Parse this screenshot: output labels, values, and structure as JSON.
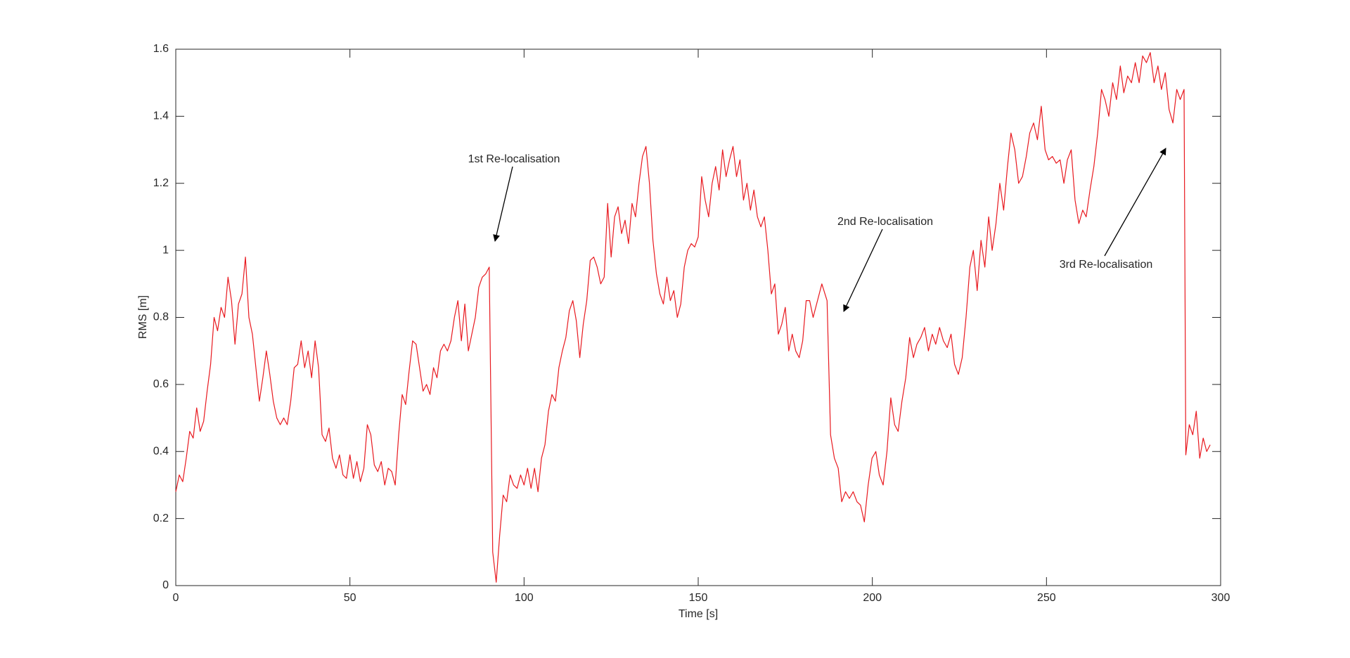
{
  "chart_data": {
    "type": "line",
    "xlabel": "Time [s]",
    "ylabel": "RMS [m]",
    "xlim": [
      0,
      300
    ],
    "xticks": [
      0,
      50,
      100,
      150,
      200,
      250,
      300
    ],
    "ylim": [
      0,
      1.6
    ],
    "yticks": [
      0,
      0.2,
      0.4,
      0.6,
      0.8,
      1,
      1.2,
      1.4,
      1.6
    ],
    "annotations": [
      "1st Re-localisation",
      "2nd Re-localisation",
      "3rd Re-localisation"
    ],
    "x": [
      0,
      1,
      2,
      3,
      4,
      5,
      6,
      7,
      8,
      9,
      10,
      11,
      12,
      13,
      14,
      15,
      16,
      17,
      18,
      19,
      20,
      21,
      22,
      23,
      24,
      25,
      26,
      27,
      28,
      29,
      30,
      31,
      32,
      33,
      34,
      35,
      36,
      37,
      38,
      39,
      40,
      41,
      42,
      43,
      44,
      45,
      46,
      47,
      48,
      49,
      50,
      51,
      52,
      53,
      54,
      55,
      56,
      57,
      58,
      59,
      60,
      61,
      62,
      63,
      64,
      65,
      66,
      67,
      68,
      69,
      70,
      71,
      72,
      73,
      74,
      75,
      76,
      77,
      78,
      79,
      80,
      81,
      82,
      83,
      84,
      85,
      86,
      87,
      88,
      89,
      90,
      91,
      92,
      93,
      94,
      95,
      96,
      97,
      98,
      99,
      100,
      101,
      102,
      103,
      104,
      105,
      106,
      107,
      108,
      109,
      110,
      111,
      112,
      113,
      114,
      115,
      116,
      117,
      118,
      119,
      120,
      121,
      122,
      123,
      124,
      125,
      126,
      127,
      128,
      129,
      130,
      131,
      132,
      133,
      134,
      135,
      136,
      137,
      138,
      139,
      140,
      141,
      142,
      143,
      144,
      145,
      146,
      147,
      148,
      149,
      150,
      151,
      152,
      153,
      154,
      155,
      156,
      157,
      158,
      159,
      160,
      161,
      162,
      163,
      164,
      165,
      166,
      167,
      168,
      169,
      170,
      171,
      172,
      173,
      174,
      175,
      176,
      177,
      178,
      179,
      180,
      181,
      182,
      183,
      185.5,
      187,
      188,
      189.1,
      190.2,
      191.2,
      192.3,
      193.4,
      194.5,
      195.6,
      196.6,
      197.7,
      198.8,
      199.9,
      201,
      202,
      203.1,
      204.2,
      205.3,
      206.4,
      207.4,
      208.5,
      209.6,
      210.7,
      211.8,
      212.8,
      213.9,
      215,
      216.1,
      217.2,
      218.2,
      219.3,
      220.4,
      221.5,
      222.6,
      223.6,
      224.7,
      225.8,
      226.9,
      228,
      229,
      230.1,
      231.2,
      232.3,
      233.4,
      234.4,
      235.5,
      236.6,
      237.7,
      238.8,
      239.8,
      240.9,
      242,
      243.1,
      244.2,
      245.2,
      246.3,
      247.4,
      248.5,
      249.6,
      250.6,
      251.7,
      252.8,
      253.9,
      255,
      256,
      257.1,
      258.2,
      259.3,
      260.4,
      261.4,
      262.5,
      263.6,
      264.7,
      265.8,
      266.8,
      267.9,
      269,
      270.1,
      271.2,
      272.2,
      273.3,
      274.4,
      275.5,
      276.6,
      277.6,
      278.7,
      279.8,
      280.9,
      282,
      283,
      284.1,
      285.2,
      286.3,
      287.4,
      288.4,
      289.5,
      290,
      291,
      292,
      293,
      294,
      295,
      296,
      297
    ],
    "series": [
      {
        "name": "RMS",
        "color": "#e8191f",
        "values": [
          0.28,
          0.33,
          0.31,
          0.38,
          0.46,
          0.44,
          0.53,
          0.46,
          0.49,
          0.58,
          0.66,
          0.8,
          0.76,
          0.83,
          0.8,
          0.92,
          0.85,
          0.72,
          0.84,
          0.87,
          0.98,
          0.8,
          0.75,
          0.65,
          0.55,
          0.62,
          0.7,
          0.63,
          0.55,
          0.5,
          0.48,
          0.5,
          0.48,
          0.55,
          0.65,
          0.66,
          0.73,
          0.65,
          0.7,
          0.62,
          0.73,
          0.65,
          0.45,
          0.43,
          0.47,
          0.38,
          0.35,
          0.39,
          0.33,
          0.32,
          0.39,
          0.32,
          0.37,
          0.31,
          0.35,
          0.48,
          0.45,
          0.36,
          0.34,
          0.37,
          0.3,
          0.35,
          0.34,
          0.3,
          0.45,
          0.57,
          0.54,
          0.64,
          0.73,
          0.72,
          0.65,
          0.58,
          0.6,
          0.57,
          0.65,
          0.62,
          0.7,
          0.72,
          0.7,
          0.73,
          0.8,
          0.85,
          0.73,
          0.84,
          0.7,
          0.75,
          0.8,
          0.89,
          0.92,
          0.93,
          0.95,
          0.1,
          0.01,
          0.15,
          0.27,
          0.25,
          0.33,
          0.3,
          0.29,
          0.33,
          0.3,
          0.35,
          0.29,
          0.35,
          0.28,
          0.38,
          0.42,
          0.52,
          0.57,
          0.55,
          0.65,
          0.7,
          0.74,
          0.82,
          0.85,
          0.79,
          0.68,
          0.78,
          0.85,
          0.97,
          0.98,
          0.95,
          0.9,
          0.92,
          1.14,
          0.98,
          1.1,
          1.13,
          1.05,
          1.09,
          1.02,
          1.14,
          1.1,
          1.2,
          1.28,
          1.31,
          1.2,
          1.03,
          0.93,
          0.87,
          0.84,
          0.92,
          0.85,
          0.88,
          0.8,
          0.84,
          0.95,
          1.0,
          1.02,
          1.01,
          1.04,
          1.22,
          1.15,
          1.1,
          1.2,
          1.25,
          1.18,
          1.3,
          1.22,
          1.27,
          1.31,
          1.22,
          1.27,
          1.15,
          1.2,
          1.12,
          1.18,
          1.1,
          1.07,
          1.1,
          1.0,
          0.87,
          0.9,
          0.75,
          0.78,
          0.83,
          0.7,
          0.75,
          0.7,
          0.68,
          0.73,
          0.85,
          0.85,
          0.8,
          0.9,
          0.85,
          0.45,
          0.38,
          0.35,
          0.25,
          0.28,
          0.26,
          0.28,
          0.25,
          0.24,
          0.19,
          0.3,
          0.38,
          0.4,
          0.33,
          0.3,
          0.4,
          0.56,
          0.48,
          0.46,
          0.55,
          0.62,
          0.74,
          0.68,
          0.72,
          0.74,
          0.77,
          0.7,
          0.75,
          0.72,
          0.77,
          0.73,
          0.71,
          0.75,
          0.66,
          0.63,
          0.68,
          0.8,
          0.95,
          1.0,
          0.88,
          1.03,
          0.95,
          1.1,
          1.0,
          1.08,
          1.2,
          1.12,
          1.25,
          1.35,
          1.3,
          1.2,
          1.22,
          1.28,
          1.35,
          1.38,
          1.33,
          1.43,
          1.3,
          1.27,
          1.28,
          1.26,
          1.27,
          1.2,
          1.27,
          1.3,
          1.15,
          1.08,
          1.12,
          1.1,
          1.18,
          1.25,
          1.35,
          1.48,
          1.45,
          1.4,
          1.5,
          1.45,
          1.55,
          1.47,
          1.52,
          1.5,
          1.56,
          1.5,
          1.58,
          1.56,
          1.59,
          1.5,
          1.55,
          1.48,
          1.53,
          1.42,
          1.38,
          1.48,
          1.45,
          1.48,
          0.39,
          0.48,
          0.45,
          0.52,
          0.38,
          0.44,
          0.4,
          0.42
        ]
      }
    ]
  }
}
